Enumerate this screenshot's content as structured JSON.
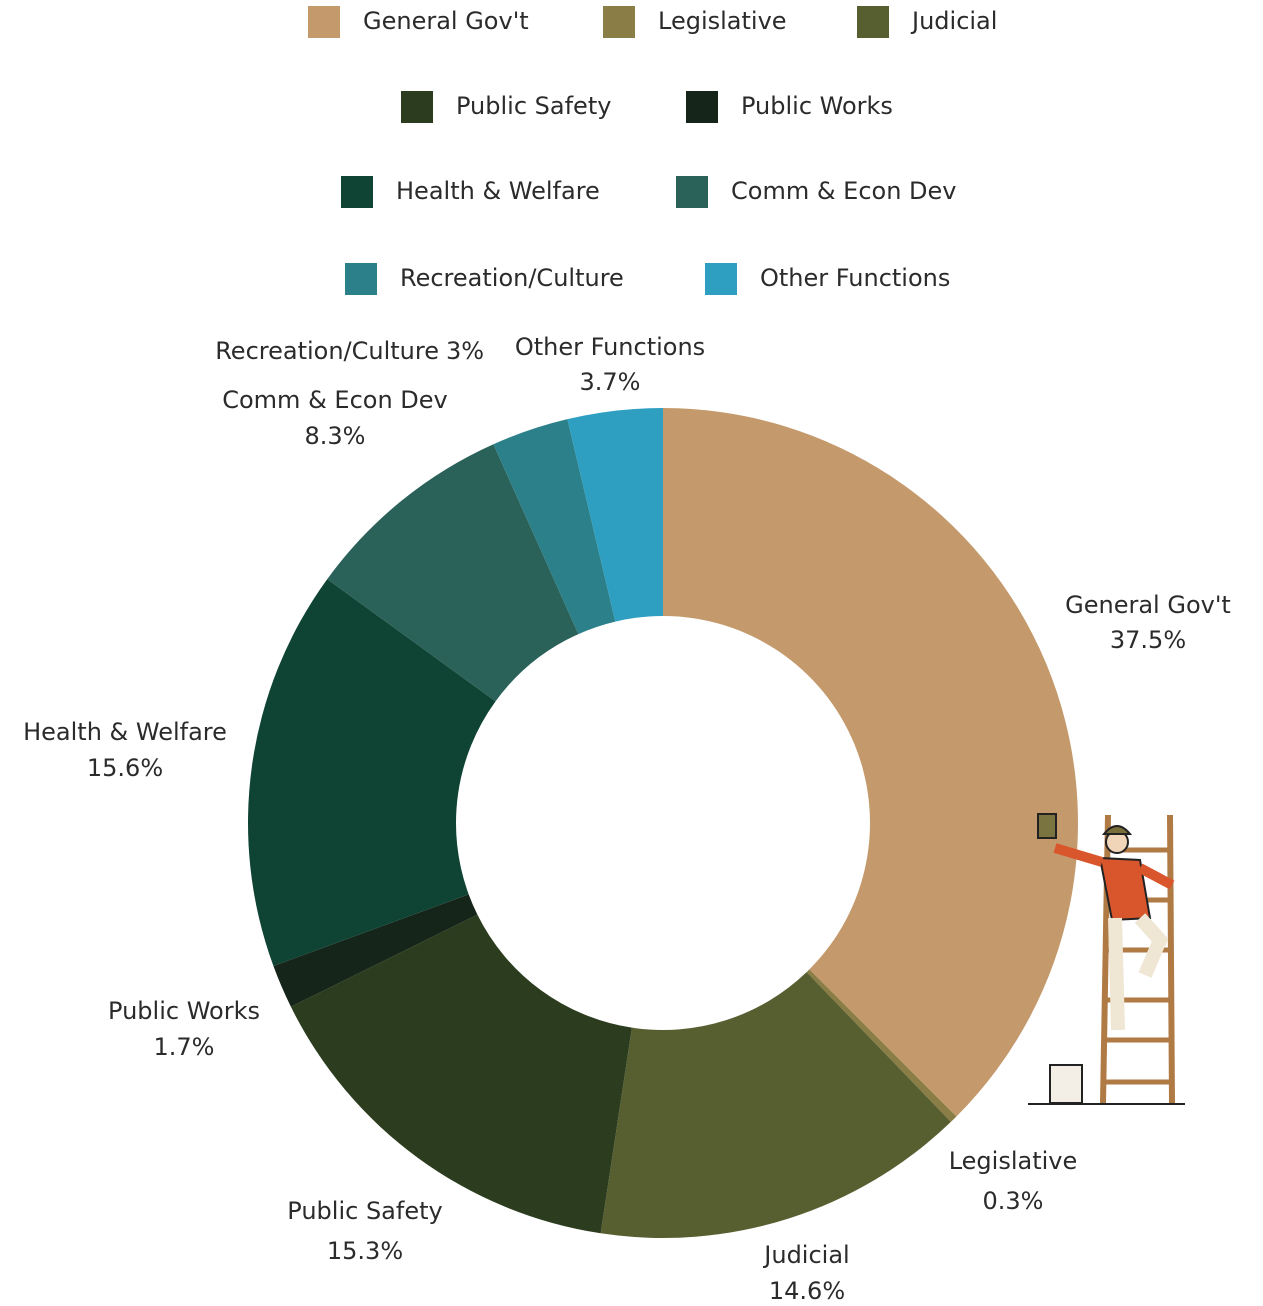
{
  "chart_data": {
    "type": "donut",
    "categories": [
      "General Gov't",
      "Legislative",
      "Judicial",
      "Public Safety",
      "Public Works",
      "Health & Welfare",
      "Comm & Econ Dev",
      "Recreation/Culture",
      "Other Functions"
    ],
    "values": [
      37.5,
      0.3,
      14.6,
      15.3,
      1.7,
      15.6,
      8.3,
      3,
      3.7
    ],
    "value_labels": [
      "37.5%",
      "0.3%",
      "14.6%",
      "15.3%",
      "1.7%",
      "15.6%",
      "8.3%",
      "3%",
      "3.7%"
    ],
    "colors": [
      "#c49a6c",
      "#8a7d45",
      "#575f31",
      "#2c3d1f",
      "#16251a",
      "#0f4434",
      "#2a625a",
      "#2c808a",
      "#2e9fc0"
    ]
  }
}
